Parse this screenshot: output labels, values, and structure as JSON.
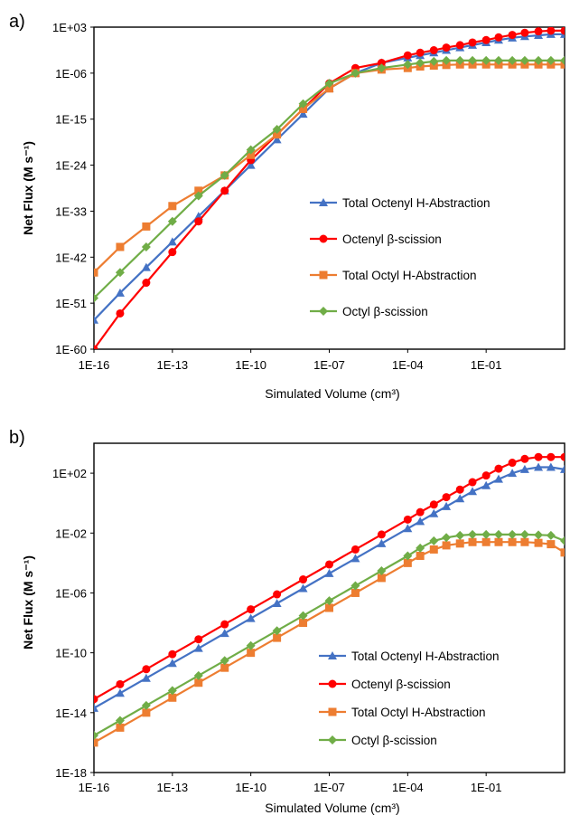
{
  "panels": [
    {
      "label": "a)",
      "chart_data": {
        "type": "line",
        "x_scale": "log",
        "y_scale": "log",
        "xlabel": "Simulated Volume (cm³)",
        "ylabel": "Net Flux (M s⁻¹)",
        "x_ticks": [
          "1E-16",
          "1E-13",
          "1E-10",
          "1E-07",
          "1E-04",
          "1E-01"
        ],
        "y_ticks": [
          "1E+03",
          "1E-06",
          "1E-15",
          "1E-24",
          "1E-33",
          "1E-42",
          "1E-51",
          "1E-60"
        ],
        "xlim": [
          1e-16,
          100
        ],
        "ylim": [
          1e-60,
          1000.0
        ],
        "legend_position": "center-right",
        "grid": false,
        "x": [
          1e-16,
          1e-15,
          1e-14,
          1e-13,
          1e-12,
          1e-11,
          1e-10,
          1e-09,
          1e-08,
          1e-07,
          1e-06,
          1e-05,
          0.0001,
          0.0003,
          0.001,
          0.003,
          0.01,
          0.03,
          0.1,
          0.3,
          1,
          3,
          10,
          30,
          100
        ],
        "series": [
          {
            "name": "Total Octenyl H-Abstraction",
            "color": "#4472c4",
            "marker": "triangle",
            "values": [
              5e-55,
              1e-49,
              1e-44,
              1e-39,
              1e-34,
              1e-29,
              1e-24,
              1e-19,
              1e-14,
              1e-09,
              1e-06,
              0.0001,
              0.001,
              0.003,
              0.01,
              0.03,
              0.1,
              0.3,
              1,
              3,
              8,
              15,
              25,
              40,
              40
            ]
          },
          {
            "name": "Octenyl β-scission",
            "color": "#ff0000",
            "marker": "circle",
            "values": [
              1e-60,
              1e-53,
              1e-47,
              1e-41,
              1e-35,
              1e-29,
              1e-23,
              1e-18,
              1e-13,
              1e-08,
              1e-05,
              0.0001,
              0.003,
              0.01,
              0.03,
              0.1,
              0.3,
              1,
              3,
              10,
              30,
              80,
              150,
              200,
              200
            ]
          },
          {
            "name": "Total Octyl H-Abstraction",
            "color": "#ed7d31",
            "marker": "square",
            "values": [
              1e-45,
              1e-40,
              1e-36,
              1e-32,
              1e-29,
              1e-26,
              1e-22,
              1e-18,
              1e-13,
              1e-09,
              1e-06,
              5e-06,
              1e-05,
              2e-05,
              3e-05,
              4e-05,
              5e-05,
              5e-05,
              5e-05,
              5e-05,
              5e-05,
              5e-05,
              5e-05,
              5e-05,
              5e-05
            ]
          },
          {
            "name": "Octyl β-scission",
            "color": "#70ad47",
            "marker": "diamond",
            "values": [
              1e-50,
              1e-45,
              1e-40,
              1e-35,
              1e-30,
              1e-26,
              1e-21,
              1e-17,
              1e-12,
              1e-08,
              1e-06,
              1e-05,
              5e-05,
              0.0001,
              0.0002,
              0.0003,
              0.0003,
              0.0003,
              0.0003,
              0.0003,
              0.0003,
              0.0003,
              0.0003,
              0.0003,
              0.0003
            ]
          }
        ]
      }
    },
    {
      "label": "b)",
      "chart_data": {
        "type": "line",
        "x_scale": "log",
        "y_scale": "log",
        "xlabel": "Simulated Volume (cm³)",
        "ylabel": "Net Flux (M s⁻¹)",
        "x_ticks": [
          "1E-16",
          "1E-13",
          "1E-10",
          "1E-07",
          "1E-04",
          "1E-01"
        ],
        "y_ticks": [
          "1E+02",
          "1E-02",
          "1E-06",
          "1E-10",
          "1E-14",
          "1E-18"
        ],
        "xlim": [
          1e-16,
          100
        ],
        "ylim": [
          1e-18,
          10000.0
        ],
        "legend_position": "bottom-right",
        "grid": false,
        "x": [
          1e-16,
          1e-15,
          1e-14,
          1e-13,
          1e-12,
          1e-11,
          1e-10,
          1e-09,
          1e-08,
          1e-07,
          1e-06,
          1e-05,
          0.0001,
          0.0003,
          0.001,
          0.003,
          0.01,
          0.03,
          0.1,
          0.3,
          1,
          3,
          10,
          30,
          100
        ],
        "series": [
          {
            "name": "Total Octenyl H-Abstraction",
            "color": "#4472c4",
            "marker": "triangle",
            "values": [
              2e-14,
              2e-13,
              2e-12,
              2e-11,
              2e-10,
              2e-09,
              2e-08,
              2e-07,
              2e-06,
              2e-05,
              0.0002,
              0.002,
              0.02,
              0.06,
              0.2,
              0.6,
              2,
              6,
              15,
              40,
              100,
              180,
              250,
              250,
              180
            ]
          },
          {
            "name": "Octenyl β-scission",
            "color": "#ff0000",
            "marker": "circle",
            "values": [
              8e-14,
              8e-13,
              8e-12,
              8e-11,
              8e-10,
              8e-09,
              8e-08,
              8e-07,
              8e-06,
              8e-05,
              0.0008,
              0.008,
              0.08,
              0.25,
              0.8,
              2.5,
              8,
              25,
              70,
              200,
              500,
              900,
              1200,
              1200,
              1200
            ]
          },
          {
            "name": "Total Octyl H-Abstraction",
            "color": "#ed7d31",
            "marker": "square",
            "values": [
              1e-16,
              1e-15,
              1e-14,
              1e-13,
              1e-12,
              1e-11,
              1e-10,
              1e-09,
              1e-08,
              1e-07,
              1e-06,
              1e-05,
              0.0001,
              0.0003,
              0.0008,
              0.0015,
              0.002,
              0.0025,
              0.0025,
              0.0025,
              0.0025,
              0.0025,
              0.0022,
              0.0018,
              0.0005
            ]
          },
          {
            "name": "Octyl β-scission",
            "color": "#70ad47",
            "marker": "diamond",
            "values": [
              3e-16,
              3e-15,
              3e-14,
              3e-13,
              3e-12,
              3e-11,
              3e-10,
              3e-09,
              3e-08,
              3e-07,
              3e-06,
              3e-05,
              0.0003,
              0.001,
              0.003,
              0.005,
              0.007,
              0.008,
              0.008,
              0.008,
              0.008,
              0.008,
              0.0075,
              0.007,
              0.003
            ]
          }
        ]
      }
    }
  ]
}
